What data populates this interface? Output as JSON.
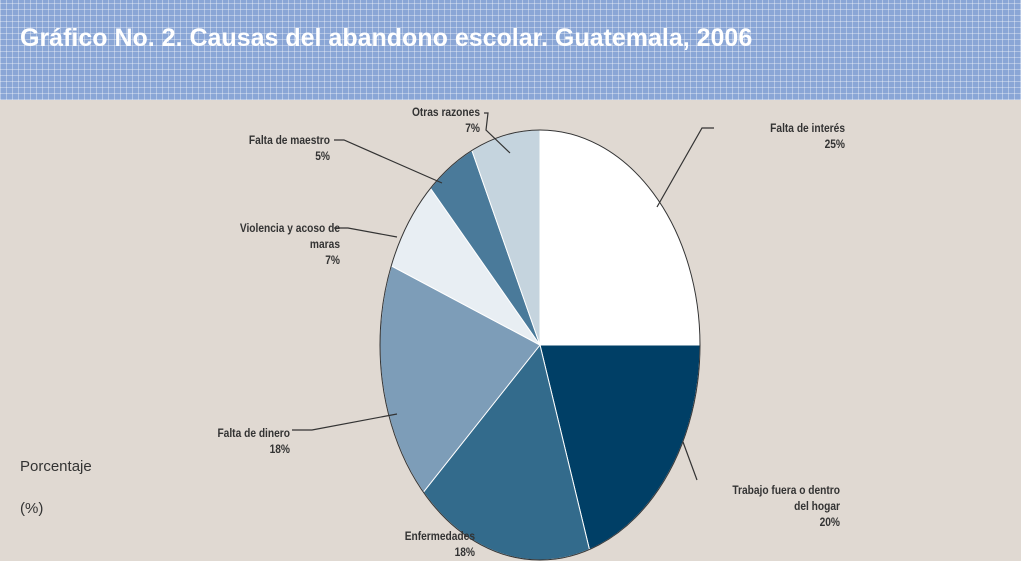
{
  "chart_data": {
    "type": "pie",
    "title": "Gráfico No. 2. Causas del abandono escolar. Guatemala, 2006",
    "y_label": "Porcentaje",
    "unit_label": "(%)",
    "categories": [
      "Falta de interés",
      "Trabajo fuera o dentro del hogar",
      "Enfermedades",
      "Falta de dinero",
      "Violencia y acoso de maras",
      "Falta de maestro",
      "Otras razones"
    ],
    "values": [
      25,
      20,
      18,
      18,
      7,
      5,
      7
    ],
    "value_labels": [
      "25%",
      "20%",
      "18%",
      "18%",
      "7%",
      "5%",
      "7%"
    ],
    "colors": [
      "#ffffff",
      "#003f66",
      "#336b8c",
      "#7d9db8",
      "#e8eef3",
      "#4a7a9a",
      "#c5d4de"
    ]
  }
}
